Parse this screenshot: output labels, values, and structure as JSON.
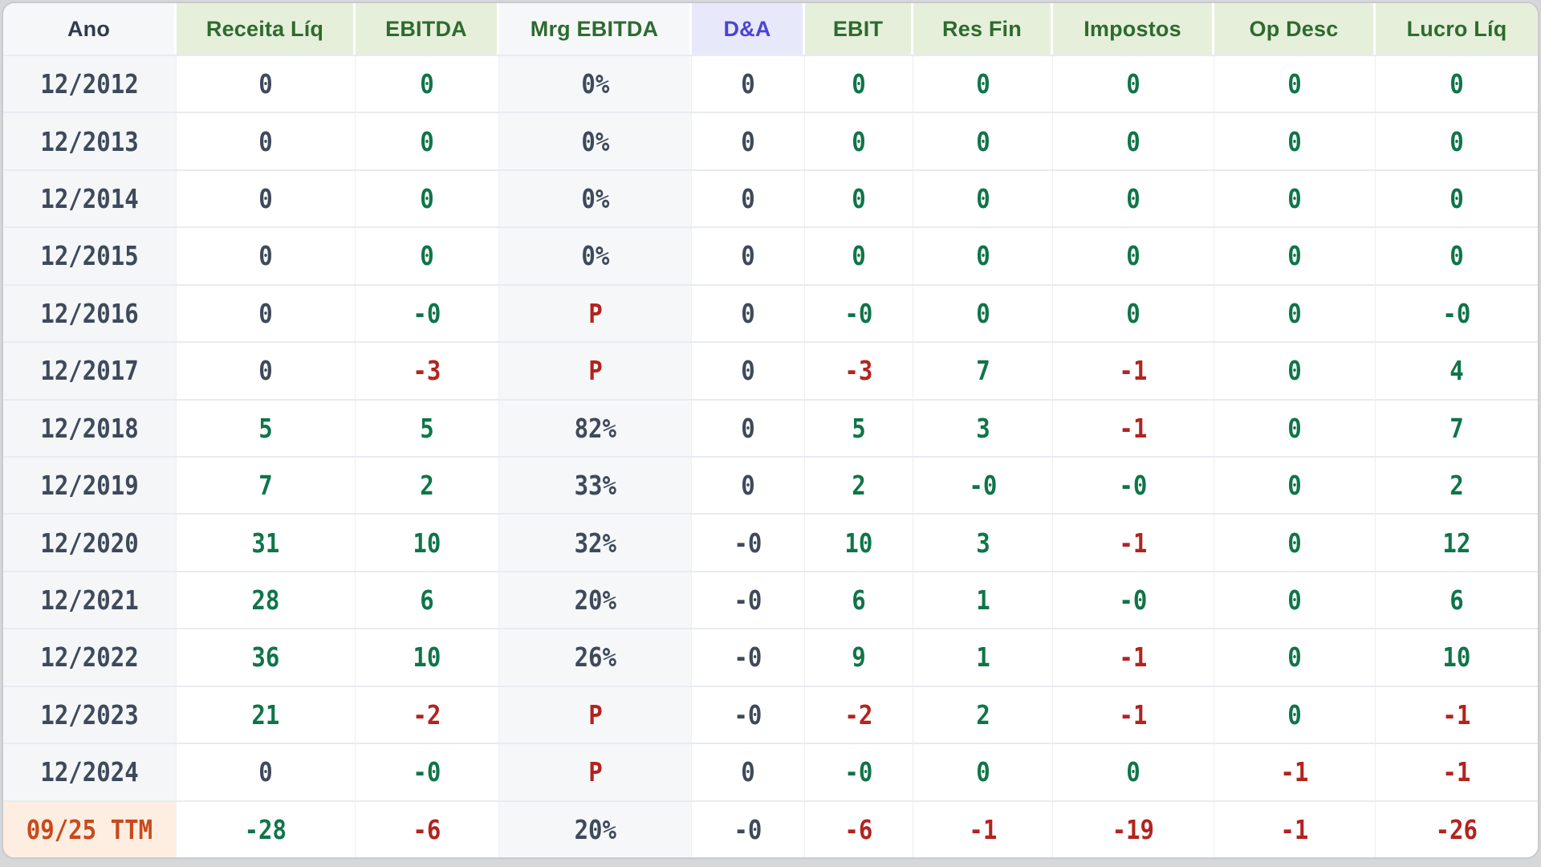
{
  "accent_colors": {
    "header_green_text": "#2d6b2e",
    "header_green_bg": "#e6efda",
    "da_header_text": "#4b43d6",
    "da_header_bg": "#e7e9fb",
    "positive_value": "#0f7549",
    "negative_value": "#b3231f",
    "neutral_value": "#3e4a5b",
    "ttm_label_text": "#c8491c",
    "ttm_label_bg": "#fdeee1"
  },
  "table": {
    "columns": [
      {
        "key": "ano",
        "label": "Ano"
      },
      {
        "key": "receita",
        "label": "Receita Líq"
      },
      {
        "key": "ebitda",
        "label": "EBITDA"
      },
      {
        "key": "mrg",
        "label": "Mrg EBITDA"
      },
      {
        "key": "da",
        "label": "D&A"
      },
      {
        "key": "ebit",
        "label": "EBIT"
      },
      {
        "key": "resfin",
        "label": "Res Fin"
      },
      {
        "key": "impostos",
        "label": "Impostos"
      },
      {
        "key": "opdesc",
        "label": "Op Desc"
      },
      {
        "key": "lucro",
        "label": "Lucro Líq"
      }
    ],
    "rows": [
      {
        "year": "12/2012",
        "ttm": false,
        "cells": [
          {
            "v": "0",
            "c": "slate"
          },
          {
            "v": "0",
            "c": "green"
          },
          {
            "v": "0%",
            "c": "slate"
          },
          {
            "v": "0",
            "c": "slate"
          },
          {
            "v": "0",
            "c": "green"
          },
          {
            "v": "0",
            "c": "green"
          },
          {
            "v": "0",
            "c": "green"
          },
          {
            "v": "0",
            "c": "green"
          },
          {
            "v": "0",
            "c": "green"
          }
        ]
      },
      {
        "year": "12/2013",
        "ttm": false,
        "cells": [
          {
            "v": "0",
            "c": "slate"
          },
          {
            "v": "0",
            "c": "green"
          },
          {
            "v": "0%",
            "c": "slate"
          },
          {
            "v": "0",
            "c": "slate"
          },
          {
            "v": "0",
            "c": "green"
          },
          {
            "v": "0",
            "c": "green"
          },
          {
            "v": "0",
            "c": "green"
          },
          {
            "v": "0",
            "c": "green"
          },
          {
            "v": "0",
            "c": "green"
          }
        ]
      },
      {
        "year": "12/2014",
        "ttm": false,
        "cells": [
          {
            "v": "0",
            "c": "slate"
          },
          {
            "v": "0",
            "c": "green"
          },
          {
            "v": "0%",
            "c": "slate"
          },
          {
            "v": "0",
            "c": "slate"
          },
          {
            "v": "0",
            "c": "green"
          },
          {
            "v": "0",
            "c": "green"
          },
          {
            "v": "0",
            "c": "green"
          },
          {
            "v": "0",
            "c": "green"
          },
          {
            "v": "0",
            "c": "green"
          }
        ]
      },
      {
        "year": "12/2015",
        "ttm": false,
        "cells": [
          {
            "v": "0",
            "c": "slate"
          },
          {
            "v": "0",
            "c": "green"
          },
          {
            "v": "0%",
            "c": "slate"
          },
          {
            "v": "0",
            "c": "slate"
          },
          {
            "v": "0",
            "c": "green"
          },
          {
            "v": "0",
            "c": "green"
          },
          {
            "v": "0",
            "c": "green"
          },
          {
            "v": "0",
            "c": "green"
          },
          {
            "v": "0",
            "c": "green"
          }
        ]
      },
      {
        "year": "12/2016",
        "ttm": false,
        "cells": [
          {
            "v": "0",
            "c": "slate"
          },
          {
            "v": "-0",
            "c": "green"
          },
          {
            "v": "P",
            "c": "red"
          },
          {
            "v": "0",
            "c": "slate"
          },
          {
            "v": "-0",
            "c": "green"
          },
          {
            "v": "0",
            "c": "green"
          },
          {
            "v": "0",
            "c": "green"
          },
          {
            "v": "0",
            "c": "green"
          },
          {
            "v": "-0",
            "c": "green"
          }
        ]
      },
      {
        "year": "12/2017",
        "ttm": false,
        "cells": [
          {
            "v": "0",
            "c": "slate"
          },
          {
            "v": "-3",
            "c": "red"
          },
          {
            "v": "P",
            "c": "red"
          },
          {
            "v": "0",
            "c": "slate"
          },
          {
            "v": "-3",
            "c": "red"
          },
          {
            "v": "7",
            "c": "green"
          },
          {
            "v": "-1",
            "c": "red"
          },
          {
            "v": "0",
            "c": "green"
          },
          {
            "v": "4",
            "c": "green"
          }
        ]
      },
      {
        "year": "12/2018",
        "ttm": false,
        "cells": [
          {
            "v": "5",
            "c": "green"
          },
          {
            "v": "5",
            "c": "green"
          },
          {
            "v": "82%",
            "c": "slate"
          },
          {
            "v": "0",
            "c": "slate"
          },
          {
            "v": "5",
            "c": "green"
          },
          {
            "v": "3",
            "c": "green"
          },
          {
            "v": "-1",
            "c": "red"
          },
          {
            "v": "0",
            "c": "green"
          },
          {
            "v": "7",
            "c": "green"
          }
        ]
      },
      {
        "year": "12/2019",
        "ttm": false,
        "cells": [
          {
            "v": "7",
            "c": "green"
          },
          {
            "v": "2",
            "c": "green"
          },
          {
            "v": "33%",
            "c": "slate"
          },
          {
            "v": "0",
            "c": "slate"
          },
          {
            "v": "2",
            "c": "green"
          },
          {
            "v": "-0",
            "c": "green"
          },
          {
            "v": "-0",
            "c": "green"
          },
          {
            "v": "0",
            "c": "green"
          },
          {
            "v": "2",
            "c": "green"
          }
        ]
      },
      {
        "year": "12/2020",
        "ttm": false,
        "cells": [
          {
            "v": "31",
            "c": "green"
          },
          {
            "v": "10",
            "c": "green"
          },
          {
            "v": "32%",
            "c": "slate"
          },
          {
            "v": "-0",
            "c": "slate"
          },
          {
            "v": "10",
            "c": "green"
          },
          {
            "v": "3",
            "c": "green"
          },
          {
            "v": "-1",
            "c": "red"
          },
          {
            "v": "0",
            "c": "green"
          },
          {
            "v": "12",
            "c": "green"
          }
        ]
      },
      {
        "year": "12/2021",
        "ttm": false,
        "cells": [
          {
            "v": "28",
            "c": "green"
          },
          {
            "v": "6",
            "c": "green"
          },
          {
            "v": "20%",
            "c": "slate"
          },
          {
            "v": "-0",
            "c": "slate"
          },
          {
            "v": "6",
            "c": "green"
          },
          {
            "v": "1",
            "c": "green"
          },
          {
            "v": "-0",
            "c": "green"
          },
          {
            "v": "0",
            "c": "green"
          },
          {
            "v": "6",
            "c": "green"
          }
        ]
      },
      {
        "year": "12/2022",
        "ttm": false,
        "cells": [
          {
            "v": "36",
            "c": "green"
          },
          {
            "v": "10",
            "c": "green"
          },
          {
            "v": "26%",
            "c": "slate"
          },
          {
            "v": "-0",
            "c": "slate"
          },
          {
            "v": "9",
            "c": "green"
          },
          {
            "v": "1",
            "c": "green"
          },
          {
            "v": "-1",
            "c": "red"
          },
          {
            "v": "0",
            "c": "green"
          },
          {
            "v": "10",
            "c": "green"
          }
        ]
      },
      {
        "year": "12/2023",
        "ttm": false,
        "cells": [
          {
            "v": "21",
            "c": "green"
          },
          {
            "v": "-2",
            "c": "red"
          },
          {
            "v": "P",
            "c": "red"
          },
          {
            "v": "-0",
            "c": "slate"
          },
          {
            "v": "-2",
            "c": "red"
          },
          {
            "v": "2",
            "c": "green"
          },
          {
            "v": "-1",
            "c": "red"
          },
          {
            "v": "0",
            "c": "green"
          },
          {
            "v": "-1",
            "c": "red"
          }
        ]
      },
      {
        "year": "12/2024",
        "ttm": false,
        "cells": [
          {
            "v": "0",
            "c": "slate"
          },
          {
            "v": "-0",
            "c": "green"
          },
          {
            "v": "P",
            "c": "red"
          },
          {
            "v": "0",
            "c": "slate"
          },
          {
            "v": "-0",
            "c": "green"
          },
          {
            "v": "0",
            "c": "green"
          },
          {
            "v": "0",
            "c": "green"
          },
          {
            "v": "-1",
            "c": "red"
          },
          {
            "v": "-1",
            "c": "red"
          }
        ]
      },
      {
        "year": "09/25 TTM",
        "ttm": true,
        "cells": [
          {
            "v": "-28",
            "c": "green"
          },
          {
            "v": "-6",
            "c": "red"
          },
          {
            "v": "20%",
            "c": "slate"
          },
          {
            "v": "-0",
            "c": "slate"
          },
          {
            "v": "-6",
            "c": "red"
          },
          {
            "v": "-1",
            "c": "red"
          },
          {
            "v": "-19",
            "c": "red"
          },
          {
            "v": "-1",
            "c": "red"
          },
          {
            "v": "-26",
            "c": "red"
          }
        ]
      }
    ]
  }
}
